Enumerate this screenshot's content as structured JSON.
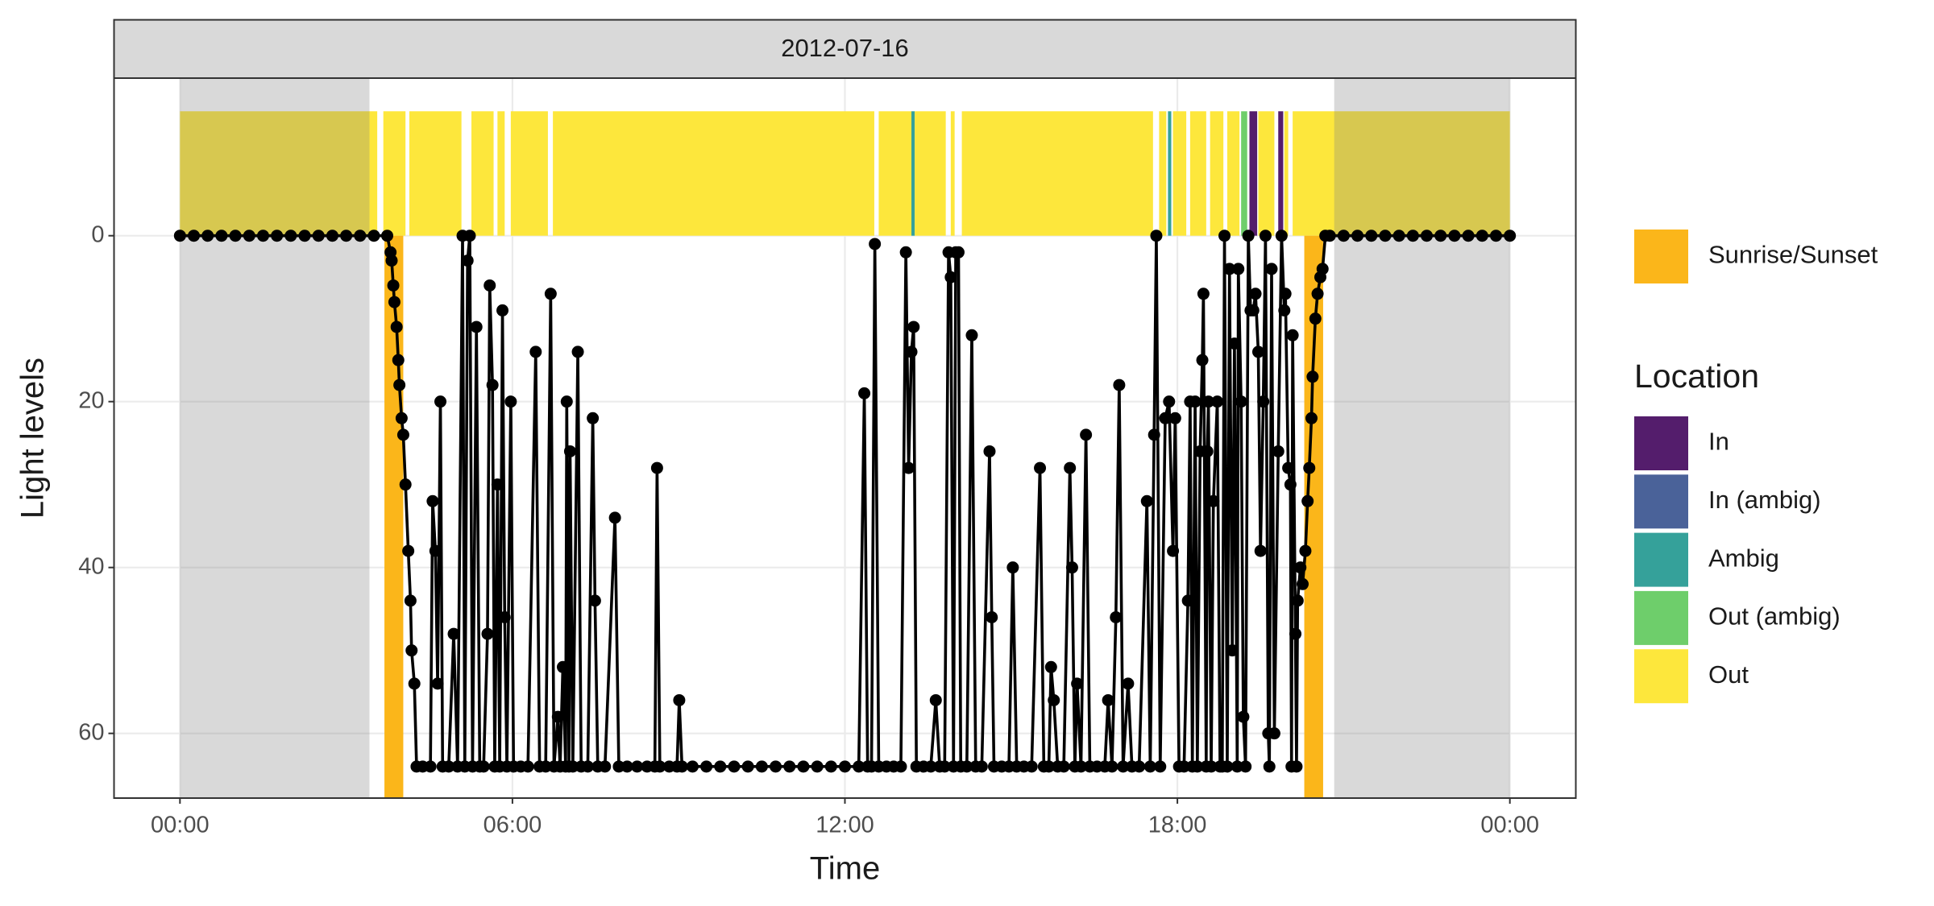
{
  "chart_data": {
    "type": "line",
    "title": "2012-07-16",
    "x_label": "Time",
    "y_label": "Light levels",
    "color": "#000000",
    "xlim": [
      -1.19,
      25.19
    ],
    "ylim": [
      -19,
      67.8
    ],
    "y_reversed": true,
    "grid": true,
    "legend_position": "right",
    "xticks": [
      {
        "value": 0,
        "label": "00:00"
      },
      {
        "value": 6,
        "label": "06:00"
      },
      {
        "value": 12,
        "label": "12:00"
      },
      {
        "value": 18,
        "label": "18:00"
      },
      {
        "value": 24,
        "label": "00:00"
      }
    ],
    "yticks": [
      0,
      20,
      40,
      60
    ],
    "x": [
      0,
      0.25,
      0.5,
      0.75,
      1,
      1.25,
      1.5,
      1.75,
      2,
      2.25,
      2.5,
      2.75,
      3,
      3.25,
      3.5,
      3.74,
      3.8,
      3.82,
      3.85,
      3.87,
      3.91,
      3.94,
      3.96,
      4,
      4.03,
      4.07,
      4.12,
      4.16,
      4.18,
      4.23,
      4.27,
      4.38,
      4.52,
      4.56,
      4.61,
      4.65,
      4.7,
      4.74,
      4.85,
      4.94,
      5.01,
      5.1,
      5.14,
      5.19,
      5.23,
      5.28,
      5.35,
      5.41,
      5.48,
      5.55,
      5.59,
      5.64,
      5.68,
      5.73,
      5.77,
      5.82,
      5.86,
      5.9,
      5.97,
      6.02,
      6.15,
      6.28,
      6.42,
      6.49,
      6.6,
      6.69,
      6.75,
      6.82,
      6.86,
      6.91,
      6.96,
      6.98,
      7.02,
      7.04,
      7.09,
      7.18,
      7.24,
      7.36,
      7.45,
      7.49,
      7.54,
      7.67,
      7.85,
      7.92,
      8.07,
      8.25,
      8.43,
      8.57,
      8.61,
      8.66,
      8.83,
      8.97,
      9.01,
      9.06,
      9.25,
      9.5,
      9.75,
      10,
      10.25,
      10.5,
      10.75,
      11,
      11.25,
      11.5,
      11.75,
      12,
      12.25,
      12.35,
      12.41,
      12.48,
      12.54,
      12.61,
      12.75,
      12.88,
      13.01,
      13.1,
      13.15,
      13.2,
      13.24,
      13.29,
      13.42,
      13.55,
      13.64,
      13.71,
      13.8,
      13.87,
      13.91,
      13.96,
      14,
      14.05,
      14.09,
      14.2,
      14.29,
      14.36,
      14.47,
      14.61,
      14.65,
      14.69,
      14.83,
      14.96,
      15.03,
      15.1,
      15.23,
      15.37,
      15.52,
      15.59,
      15.68,
      15.72,
      15.77,
      15.84,
      15.95,
      16.06,
      16.1,
      16.15,
      16.19,
      16.26,
      16.35,
      16.42,
      16.55,
      16.69,
      16.75,
      16.82,
      16.89,
      16.95,
      17.02,
      17.11,
      17.18,
      17.31,
      17.45,
      17.51,
      17.58,
      17.62,
      17.69,
      17.78,
      17.85,
      17.92,
      17.96,
      18.03,
      18.12,
      18.19,
      18.23,
      18.27,
      18.32,
      18.36,
      18.41,
      18.45,
      18.47,
      18.52,
      18.54,
      18.56,
      18.61,
      18.65,
      18.72,
      18.77,
      18.81,
      18.85,
      18.9,
      18.94,
      18.99,
      19.03,
      19.08,
      19.1,
      19.15,
      19.19,
      19.23,
      19.28,
      19.32,
      19.37,
      19.41,
      19.46,
      19.5,
      19.55,
      19.59,
      19.64,
      19.66,
      19.7,
      19.75,
      19.82,
      19.88,
      19.93,
      19.95,
      20,
      20.04,
      20.06,
      20.08,
      20.13,
      20.15,
      20.17,
      20.22,
      20.26,
      20.31,
      20.35,
      20.38,
      20.42,
      20.44,
      20.49,
      20.53,
      20.58,
      20.62,
      20.67,
      20.75,
      21,
      21.25,
      21.5,
      21.75,
      22,
      22.25,
      22.5,
      22.75,
      23,
      23.25,
      23.5,
      23.75,
      24
    ],
    "values": [
      0,
      0,
      0,
      0,
      0,
      0,
      0,
      0,
      0,
      0,
      0,
      0,
      0,
      0,
      0,
      0,
      2,
      3,
      6,
      8,
      11,
      15,
      18,
      22,
      24,
      30,
      38,
      44,
      50,
      54,
      64,
      64,
      64,
      32,
      38,
      54,
      20,
      64,
      64,
      48,
      64,
      0,
      64,
      3,
      0,
      64,
      11,
      64,
      64,
      48,
      6,
      18,
      64,
      30,
      64,
      9,
      46,
      64,
      20,
      64,
      64,
      64,
      14,
      64,
      64,
      7,
      64,
      58,
      64,
      52,
      64,
      20,
      64,
      26,
      64,
      14,
      64,
      64,
      22,
      44,
      64,
      64,
      34,
      64,
      64,
      64,
      64,
      64,
      28,
      64,
      64,
      64,
      56,
      64,
      64,
      64,
      64,
      64,
      64,
      64,
      64,
      64,
      64,
      64,
      64,
      64,
      64,
      19,
      64,
      64,
      1,
      64,
      64,
      64,
      64,
      2,
      28,
      14,
      11,
      64,
      64,
      64,
      56,
      64,
      64,
      2,
      5,
      64,
      2,
      2,
      64,
      64,
      12,
      64,
      64,
      26,
      46,
      64,
      64,
      64,
      40,
      64,
      64,
      64,
      28,
      64,
      64,
      52,
      56,
      64,
      64,
      28,
      40,
      64,
      54,
      64,
      24,
      64,
      64,
      64,
      56,
      64,
      46,
      18,
      64,
      54,
      64,
      64,
      32,
      64,
      24,
      0,
      64,
      22,
      20,
      38,
      22,
      64,
      64,
      44,
      20,
      64,
      20,
      64,
      26,
      15,
      7,
      64,
      26,
      20,
      64,
      32,
      20,
      64,
      64,
      0,
      64,
      4,
      50,
      13,
      64,
      4,
      20,
      58,
      64,
      0,
      9,
      9,
      7,
      14,
      38,
      20,
      0,
      60,
      64,
      4,
      60,
      26,
      0,
      9,
      7,
      28,
      30,
      64,
      12,
      48,
      64,
      44,
      40,
      42,
      38,
      32,
      28,
      22,
      17,
      10,
      7,
      5,
      4,
      0,
      0,
      0,
      0,
      0,
      0,
      0,
      0,
      0,
      0,
      0,
      0,
      0,
      0,
      0
    ],
    "sun": {
      "name": "Sunrise/Sunset",
      "color": "#FBB61A",
      "intervals": [
        [
          3.69,
          4.03
        ],
        [
          20.29,
          20.63
        ]
      ]
    },
    "night": {
      "color": "#808080",
      "opacity": 0.3,
      "intervals": [
        [
          0,
          3.42
        ],
        [
          20.83,
          24
        ]
      ]
    },
    "location": {
      "title": "Location",
      "band": [
        -15,
        0
      ],
      "categories": [
        {
          "name": "In",
          "color": "#541D6C"
        },
        {
          "name": "In (ambig)",
          "color": "#4A6299"
        },
        {
          "name": "Ambig",
          "color": "#35A19A"
        },
        {
          "name": "Out (ambig)",
          "color": "#6ECE6B"
        },
        {
          "name": "Out",
          "color": "#FDE73C"
        }
      ],
      "segments": [
        {
          "start": 0,
          "end": 3.56,
          "location": "Out"
        },
        {
          "start": 3.67,
          "end": 4.07,
          "location": "Out"
        },
        {
          "start": 4.14,
          "end": 5.08,
          "location": "Out"
        },
        {
          "start": 5.26,
          "end": 5.66,
          "location": "Out"
        },
        {
          "start": 5.73,
          "end": 5.86,
          "location": "Out"
        },
        {
          "start": 5.97,
          "end": 6.64,
          "location": "Out"
        },
        {
          "start": 6.73,
          "end": 12.53,
          "location": "Out"
        },
        {
          "start": 12.61,
          "end": 13.2,
          "location": "Out"
        },
        {
          "start": 13.2,
          "end": 13.26,
          "location": "Ambig"
        },
        {
          "start": 13.26,
          "end": 13.82,
          "location": "Out"
        },
        {
          "start": 13.91,
          "end": 13.98,
          "location": "Out"
        },
        {
          "start": 14.11,
          "end": 17.56,
          "location": "Out"
        },
        {
          "start": 17.67,
          "end": 17.8,
          "location": "Out"
        },
        {
          "start": 17.83,
          "end": 17.89,
          "location": "Ambig"
        },
        {
          "start": 17.92,
          "end": 18.16,
          "location": "Out"
        },
        {
          "start": 18.23,
          "end": 18.52,
          "location": "Out"
        },
        {
          "start": 18.59,
          "end": 18.83,
          "location": "Out"
        },
        {
          "start": 18.9,
          "end": 19.12,
          "location": "Out"
        },
        {
          "start": 19.15,
          "end": 19.26,
          "location": "Out (ambig)"
        },
        {
          "start": 19.3,
          "end": 19.44,
          "location": "In"
        },
        {
          "start": 19.46,
          "end": 19.75,
          "location": "Out"
        },
        {
          "start": 19.82,
          "end": 19.91,
          "location": "In"
        },
        {
          "start": 19.93,
          "end": 20.0,
          "location": "Out"
        },
        {
          "start": 20.08,
          "end": 24,
          "location": "Out"
        }
      ]
    }
  }
}
